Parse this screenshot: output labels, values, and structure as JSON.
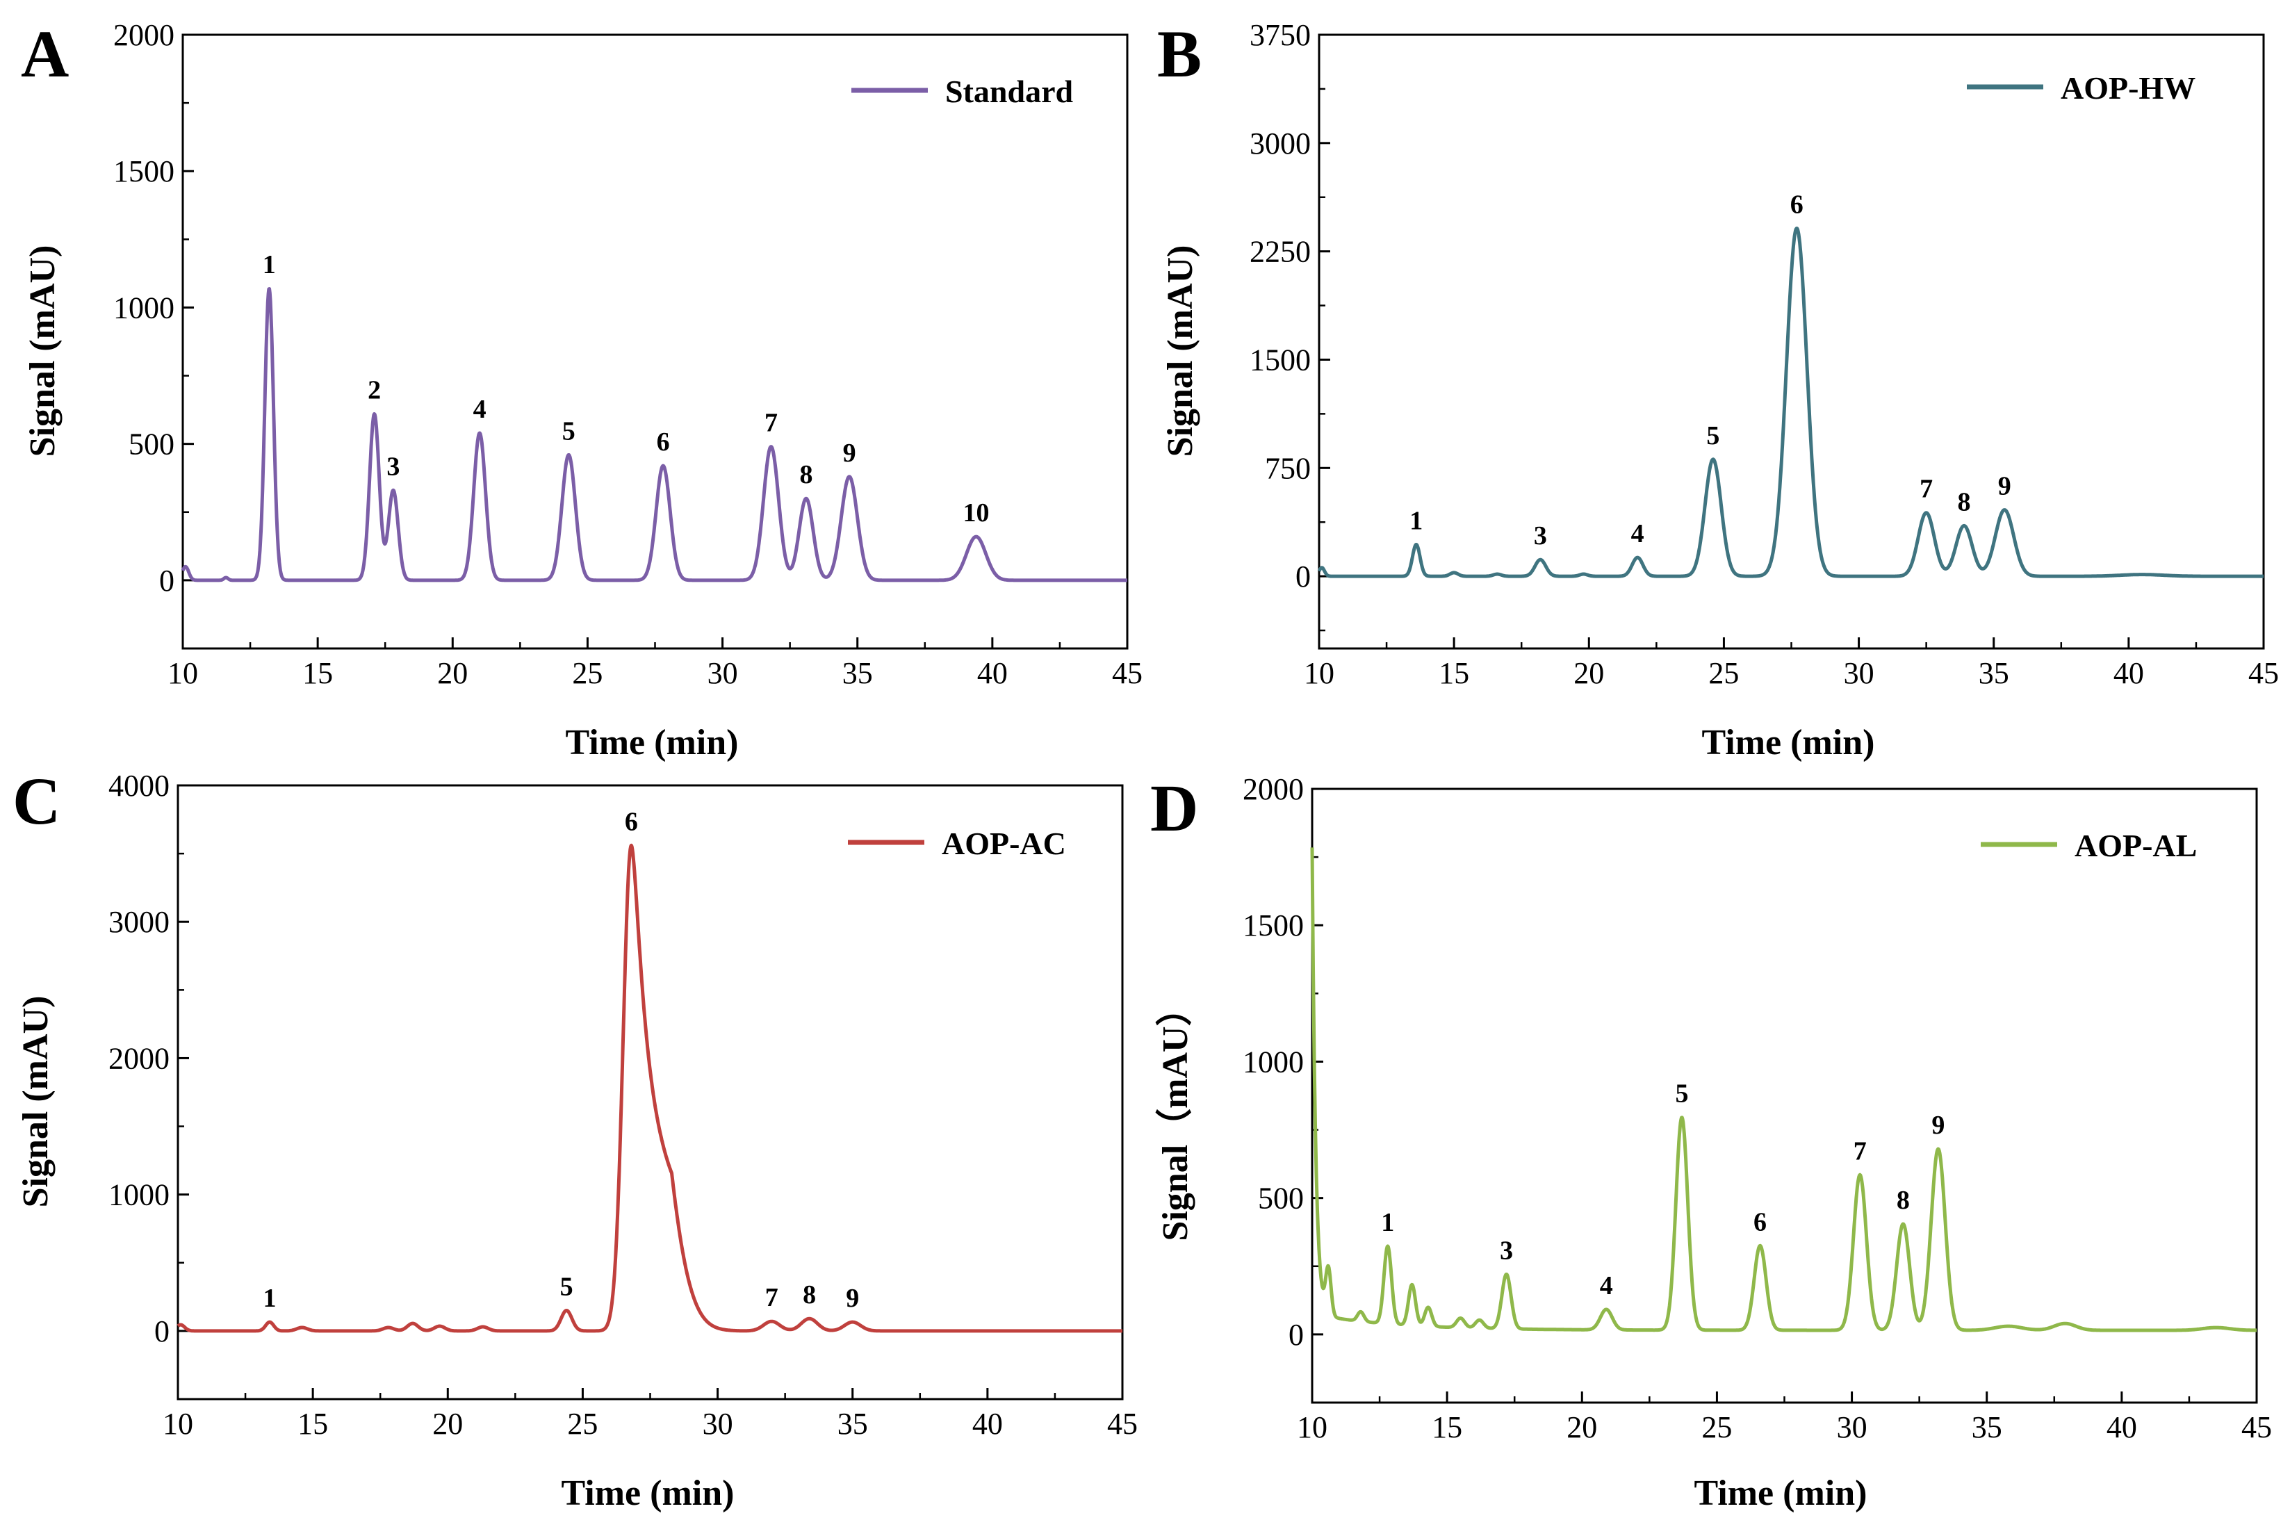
{
  "chart_data": [
    {
      "type": "line",
      "panel": "A",
      "xlabel": "Time (min)",
      "ylabel": "Signal (mAU)",
      "xlim": [
        10,
        45
      ],
      "ylim": [
        -250,
        2000
      ],
      "xticks": [
        10,
        15,
        20,
        25,
        30,
        35,
        40,
        45
      ],
      "yticks": [
        0,
        500,
        1000,
        1500,
        2000
      ],
      "legend": "top-right",
      "series": [
        {
          "name": "Standard",
          "color": "#7B5EA7"
        }
      ],
      "baseline": 0,
      "peaks": [
        {
          "label": "1",
          "x": 13.2,
          "y": 1070,
          "w": 0.16
        },
        {
          "label": "2",
          "x": 17.1,
          "y": 610,
          "w": 0.18
        },
        {
          "label": "3",
          "x": 17.8,
          "y": 330,
          "w": 0.18
        },
        {
          "label": "4",
          "x": 21.0,
          "y": 540,
          "w": 0.22
        },
        {
          "label": "5",
          "x": 24.3,
          "y": 460,
          "w": 0.25
        },
        {
          "label": "6",
          "x": 27.8,
          "y": 420,
          "w": 0.26
        },
        {
          "label": "7",
          "x": 31.8,
          "y": 490,
          "w": 0.28
        },
        {
          "label": "8",
          "x": 33.1,
          "y": 300,
          "w": 0.26
        },
        {
          "label": "9",
          "x": 34.7,
          "y": 380,
          "w": 0.3
        },
        {
          "label": "10",
          "x": 39.4,
          "y": 160,
          "w": 0.36
        }
      ],
      "minor_peaks": [
        {
          "x": 10.1,
          "y": 50,
          "w": 0.12
        },
        {
          "x": 11.6,
          "y": 10,
          "w": 0.08
        }
      ]
    },
    {
      "type": "line",
      "panel": "B",
      "xlabel": "Time (min)",
      "ylabel": "Signal (mAU)",
      "xlim": [
        10,
        45
      ],
      "ylim": [
        -500,
        3750
      ],
      "xticks": [
        10,
        15,
        20,
        25,
        30,
        35,
        40,
        45
      ],
      "yticks": [
        0,
        750,
        1500,
        2250,
        3000,
        3750
      ],
      "legend": "top-right",
      "series": [
        {
          "name": "AOP-HW",
          "color": "#3F7480"
        }
      ],
      "baseline": 0,
      "peaks": [
        {
          "label": "1",
          "x": 13.6,
          "y": 220,
          "w": 0.14
        },
        {
          "label": "3",
          "x": 18.2,
          "y": 115,
          "w": 0.2
        },
        {
          "label": "4",
          "x": 21.8,
          "y": 130,
          "w": 0.2
        },
        {
          "label": "5",
          "x": 24.6,
          "y": 810,
          "w": 0.3
        },
        {
          "label": "6",
          "x": 27.7,
          "y": 2410,
          "w": 0.38
        },
        {
          "label": "7",
          "x": 32.5,
          "y": 440,
          "w": 0.3
        },
        {
          "label": "8",
          "x": 33.9,
          "y": 350,
          "w": 0.3
        },
        {
          "label": "9",
          "x": 35.4,
          "y": 460,
          "w": 0.34
        }
      ],
      "minor_peaks": [
        {
          "x": 10.1,
          "y": 60,
          "w": 0.1
        },
        {
          "x": 15.0,
          "y": 25,
          "w": 0.15
        },
        {
          "x": 16.6,
          "y": 15,
          "w": 0.15
        },
        {
          "x": 19.8,
          "y": 15,
          "w": 0.15
        },
        {
          "x": 40.5,
          "y": 12,
          "w": 0.8
        }
      ]
    },
    {
      "type": "line",
      "panel": "C",
      "xlabel": "Time (min)",
      "ylabel": "Signal (mAU)",
      "xlim": [
        10,
        45
      ],
      "ylim": [
        -500,
        4000
      ],
      "xticks": [
        10,
        15,
        20,
        25,
        30,
        35,
        40,
        45
      ],
      "yticks": [
        0,
        1000,
        2000,
        3000,
        4000
      ],
      "legend": "top-right",
      "series": [
        {
          "name": "AOP-AC",
          "color": "#C0403D"
        }
      ],
      "baseline": 0,
      "peaks": [
        {
          "label": "1",
          "x": 13.4,
          "y": 65,
          "w": 0.15
        },
        {
          "label": "5",
          "x": 24.4,
          "y": 150,
          "w": 0.2
        },
        {
          "label": "6",
          "x": 26.8,
          "y": 3560,
          "w": 0.3,
          "tail": 0.7
        },
        {
          "label": "7",
          "x": 32.0,
          "y": 70,
          "w": 0.3
        },
        {
          "label": "8",
          "x": 33.4,
          "y": 90,
          "w": 0.3
        },
        {
          "label": "9",
          "x": 35.0,
          "y": 65,
          "w": 0.3
        }
      ],
      "minor_peaks": [
        {
          "x": 10.1,
          "y": 45,
          "w": 0.15
        },
        {
          "x": 14.6,
          "y": 25,
          "w": 0.2
        },
        {
          "x": 17.8,
          "y": 25,
          "w": 0.2
        },
        {
          "x": 18.7,
          "y": 55,
          "w": 0.2
        },
        {
          "x": 19.7,
          "y": 35,
          "w": 0.2
        },
        {
          "x": 21.3,
          "y": 30,
          "w": 0.2
        }
      ]
    },
    {
      "type": "line",
      "panel": "D",
      "xlabel": "Time (min)",
      "ylabel": "Signal（mAU）",
      "xlim": [
        10,
        45
      ],
      "ylim": [
        -250,
        2000
      ],
      "xticks": [
        10,
        15,
        20,
        25,
        30,
        35,
        40,
        45
      ],
      "yticks": [
        0,
        500,
        1000,
        1500,
        2000
      ],
      "legend": "top-right",
      "series": [
        {
          "name": "AOP-AL",
          "color": "#8FB84A"
        }
      ],
      "baseline": 15,
      "peaks": [
        {
          "label": "1",
          "x": 12.8,
          "y": 285,
          "w": 0.14
        },
        {
          "label": "3",
          "x": 17.2,
          "y": 200,
          "w": 0.17
        },
        {
          "label": "4",
          "x": 20.9,
          "y": 75,
          "w": 0.22
        },
        {
          "label": "5",
          "x": 23.7,
          "y": 780,
          "w": 0.22
        },
        {
          "label": "6",
          "x": 26.6,
          "y": 310,
          "w": 0.22
        },
        {
          "label": "7",
          "x": 30.3,
          "y": 570,
          "w": 0.24
        },
        {
          "label": "8",
          "x": 31.9,
          "y": 390,
          "w": 0.24
        },
        {
          "label": "9",
          "x": 33.2,
          "y": 665,
          "w": 0.26
        }
      ],
      "minor_peaks": [
        {
          "x": 10.6,
          "y": 170,
          "w": 0.1
        },
        {
          "x": 11.8,
          "y": 35,
          "w": 0.12
        },
        {
          "x": 13.7,
          "y": 150,
          "w": 0.13
        },
        {
          "x": 14.3,
          "y": 70,
          "w": 0.13
        },
        {
          "x": 15.5,
          "y": 35,
          "w": 0.15
        },
        {
          "x": 16.2,
          "y": 30,
          "w": 0.15
        },
        {
          "x": 35.8,
          "y": 15,
          "w": 0.5
        },
        {
          "x": 37.9,
          "y": 25,
          "w": 0.4
        },
        {
          "x": 43.5,
          "y": 10,
          "w": 0.5
        }
      ],
      "solvent_front": {
        "x": 10.0,
        "y": 1770,
        "decay": 0.13,
        "floor": 60
      }
    }
  ]
}
